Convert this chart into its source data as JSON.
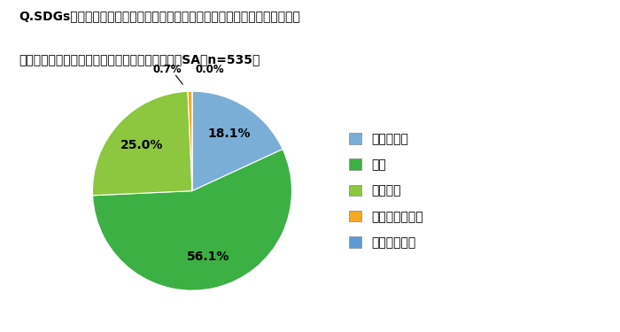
{
  "title_line1": "Q.SDGsについて、簡単に貢献できることがあれば「自分でもやってみたい」",
  "title_line2": "「できたらいいな」と思うことはありますか？（SA・n=535）",
  "labels": [
    "非常に思う",
    "思う",
    "少し思う",
    "あまり思わない",
    "全く思わない"
  ],
  "values": [
    18.1,
    56.1,
    25.0,
    0.7,
    0.0
  ],
  "colors": [
    "#7aaed6",
    "#3cb043",
    "#8dc63f",
    "#f5a623",
    "#7aaed6"
  ],
  "legend_colors": [
    "#7aaed6",
    "#3cb043",
    "#8dc63f",
    "#f5a623",
    "#5b9bd5"
  ],
  "pct_labels": [
    "18.1%",
    "56.1%",
    "25.0%",
    "0.7%",
    "0.0%"
  ],
  "background_color": "#ffffff",
  "startangle": 90
}
